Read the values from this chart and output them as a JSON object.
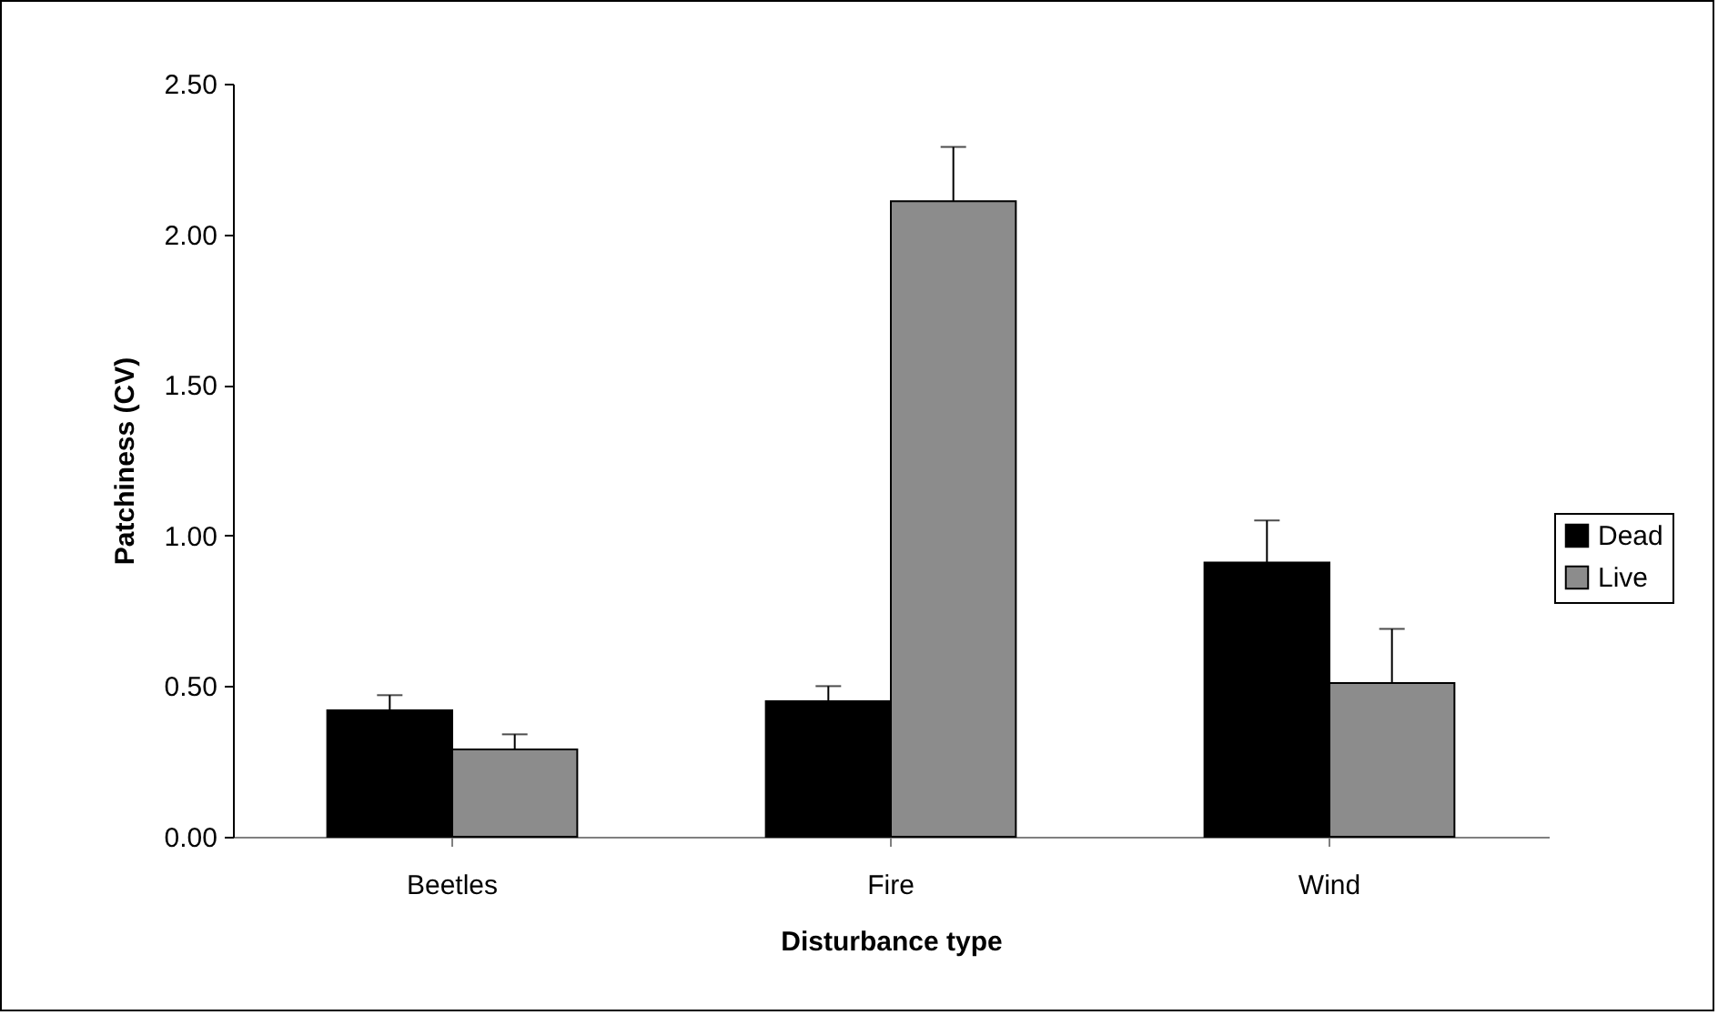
{
  "chart_data": {
    "type": "bar",
    "xlabel": "Disturbance type",
    "ylabel": "Patchiness (CV)",
    "categories": [
      "Beetles",
      "Fire",
      "Wind"
    ],
    "series": [
      {
        "name": "Dead",
        "color": "#000000",
        "values": [
          0.42,
          0.45,
          0.91
        ],
        "errors": [
          [
            0.42,
            0.47
          ],
          [
            0.45,
            0.5
          ],
          [
            0.91,
            1.05
          ]
        ]
      },
      {
        "name": "Live",
        "color": "#8c8c8c",
        "values": [
          0.29,
          2.11,
          0.51
        ],
        "errors": [
          [
            0.29,
            0.34
          ],
          [
            2.11,
            2.29
          ],
          [
            0.51,
            0.69
          ]
        ]
      }
    ],
    "ylim": [
      0,
      2.5
    ],
    "yticks": [
      {
        "value": 0,
        "label": "0.00"
      },
      {
        "value": 0.5,
        "label": "0.50"
      },
      {
        "value": 1,
        "label": "1.00"
      },
      {
        "value": 1.5,
        "label": "1.50"
      },
      {
        "value": 2,
        "label": "2.00"
      },
      {
        "value": 2.5,
        "label": "2.50"
      }
    ],
    "legend": "right",
    "grid": false
  }
}
